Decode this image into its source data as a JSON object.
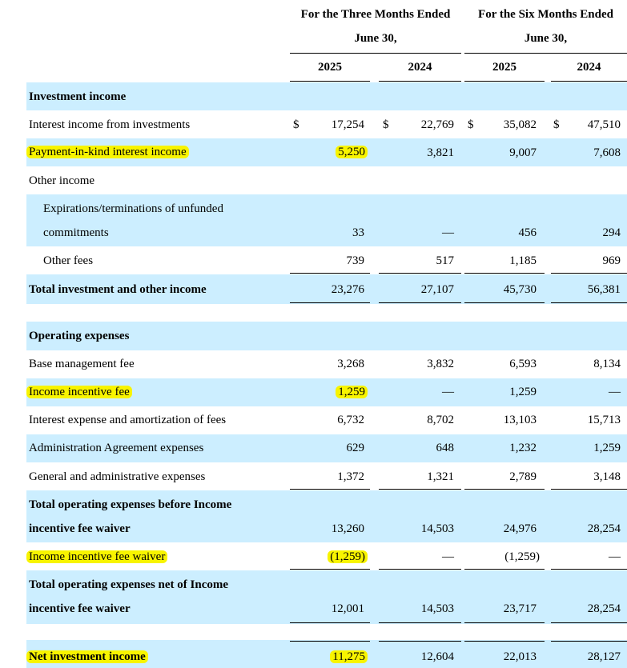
{
  "header": {
    "group1_line1": "For the Three Months Ended",
    "group1_line2": "June 30,",
    "group2_line1": "For the Six Months Ended",
    "group2_line2": "June 30,",
    "years": [
      "2025",
      "2024",
      "2025",
      "2024"
    ]
  },
  "currency_symbol": "$",
  "highlight_color": "#f8f400",
  "band_color": "#cceeff",
  "rows": {
    "investment_income": {
      "label": "Investment income"
    },
    "interest_income": {
      "label": "Interest income from investments",
      "v": [
        "17,254",
        "22,769",
        "35,082",
        "47,510"
      ]
    },
    "pik": {
      "label": "Payment-in-kind interest income",
      "v": [
        "5,250",
        "3,821",
        "9,007",
        "7,608"
      ]
    },
    "other_income": {
      "label": "Other income"
    },
    "expirations": {
      "label1": "Expirations/terminations of unfunded",
      "label2": "commitments",
      "v": [
        "33",
        "—",
        "456",
        "294"
      ]
    },
    "other_fees": {
      "label": "Other fees",
      "v": [
        "739",
        "517",
        "1,185",
        "969"
      ]
    },
    "total_income": {
      "label": "Total investment and other income",
      "v": [
        "23,276",
        "27,107",
        "45,730",
        "56,381"
      ]
    },
    "operating_expenses": {
      "label": "Operating expenses"
    },
    "base_fee": {
      "label": "Base management fee",
      "v": [
        "3,268",
        "3,832",
        "6,593",
        "8,134"
      ]
    },
    "incentive_fee": {
      "label": "Income incentive fee",
      "v": [
        "1,259",
        "—",
        "1,259",
        "—"
      ]
    },
    "interest_expense": {
      "label": "Interest expense and amortization of fees",
      "v": [
        "6,732",
        "8,702",
        "13,103",
        "15,713"
      ]
    },
    "admin": {
      "label": "Administration Agreement expenses",
      "v": [
        "629",
        "648",
        "1,232",
        "1,259"
      ]
    },
    "general": {
      "label": "General and administrative expenses",
      "v": [
        "1,372",
        "1,321",
        "2,789",
        "3,148"
      ]
    },
    "total_before": {
      "label1": "Total operating expenses before Income",
      "label2": "incentive fee waiver",
      "v": [
        "13,260",
        "14,503",
        "24,976",
        "28,254"
      ]
    },
    "waiver": {
      "label": "Income incentive fee waiver",
      "v": [
        "(1,259)",
        "—",
        "(1,259)",
        "—"
      ]
    },
    "total_net": {
      "label1": "Total operating expenses net of Income",
      "label2": "incentive fee waiver",
      "v": [
        "12,001",
        "14,503",
        "23,717",
        "28,254"
      ]
    },
    "nii": {
      "label": "Net investment income",
      "v": [
        "11,275",
        "12,604",
        "22,013",
        "28,127"
      ]
    }
  }
}
